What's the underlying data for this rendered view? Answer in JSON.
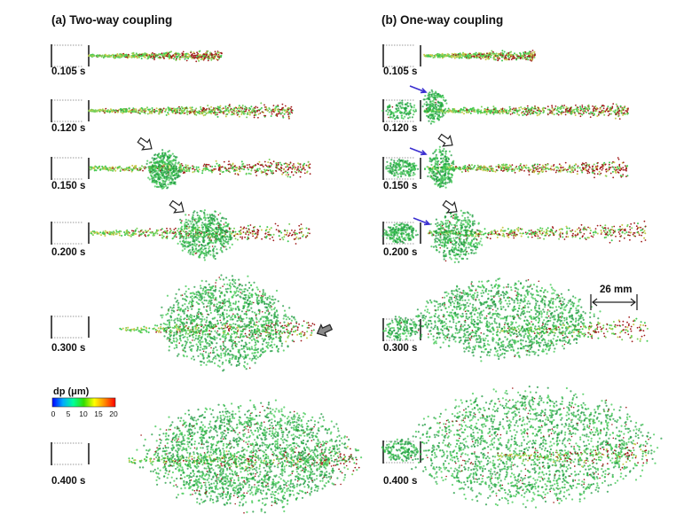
{
  "panels": [
    {
      "id": "a",
      "title": "(a) Two-way coupling",
      "times": [
        "0.105 s",
        "0.120 s",
        "0.150 s",
        "0.200 s",
        "0.300 s",
        "0.400 s"
      ]
    },
    {
      "id": "b",
      "title": "(b) One-way coupling",
      "times": [
        "0.105 s",
        "0.120 s",
        "0.150 s",
        "0.200 s",
        "0.300 s",
        "0.400 s"
      ]
    }
  ],
  "scale_bar": {
    "label": "26 mm"
  },
  "colorbar": {
    "title": "dp (μm)",
    "ticks": [
      "0",
      "5",
      "10",
      "15",
      "20"
    ],
    "colors": [
      "#0000ff",
      "#00aaff",
      "#00ff99",
      "#33dd00",
      "#ffff00",
      "#ff8800",
      "#ff0000"
    ]
  },
  "colors": {
    "green": "#3ec850",
    "dark_green": "#1e9a40",
    "red": "#a01a1a",
    "arrow_blue": "#3a2fd0",
    "arrow_gray": "#8a8a8a"
  }
}
